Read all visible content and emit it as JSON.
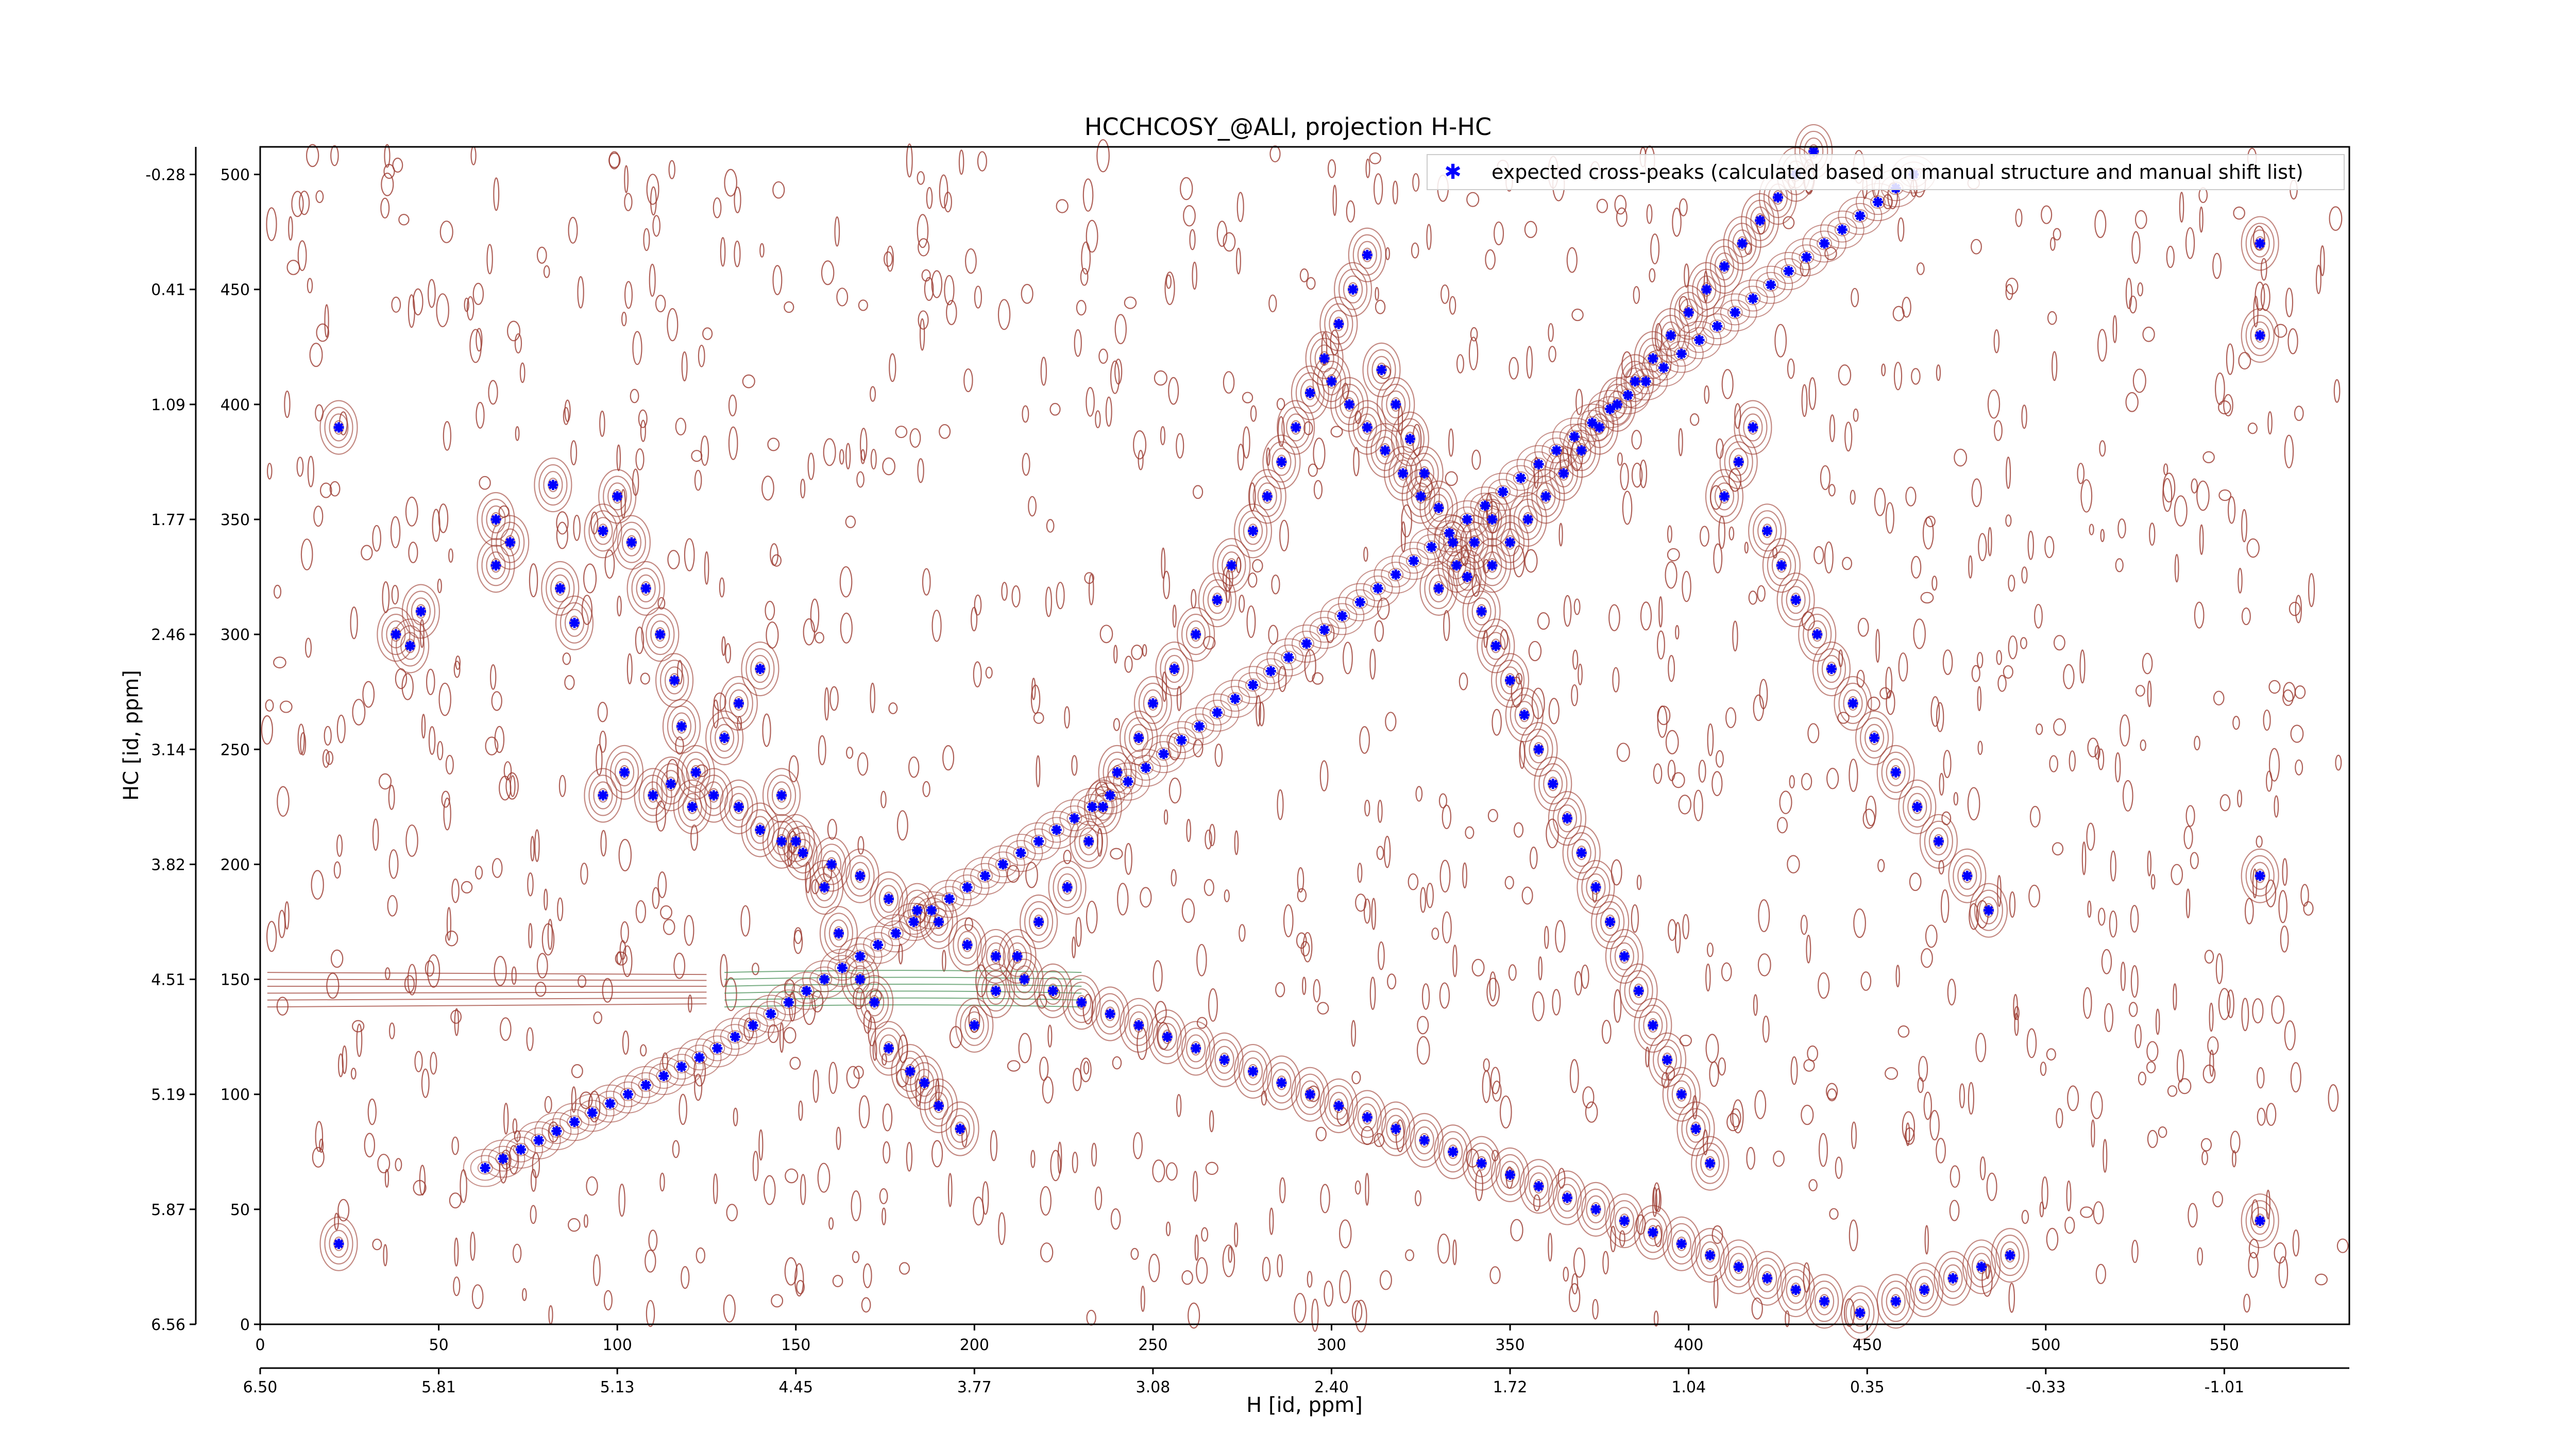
{
  "chart_data": {
    "type": "scatter",
    "title": "HCCHCOSY_@ALI, projection H-HC",
    "xlabel": "H [id, ppm]",
    "ylabel": "HC [id, ppm]",
    "xlim": [
      0,
      585
    ],
    "ylim": [
      0,
      512
    ],
    "x_ticks_points": [
      "0",
      "50",
      "100",
      "150",
      "200",
      "250",
      "300",
      "350",
      "400",
      "450",
      "500",
      "550"
    ],
    "x_ticks_ppm": [
      "6.50",
      "5.81",
      "5.13",
      "4.45",
      "3.77",
      "3.08",
      "2.40",
      "1.72",
      "1.04",
      "0.35",
      "-0.33",
      "-1.01"
    ],
    "y_ticks_points": [
      "0",
      "50",
      "100",
      "150",
      "200",
      "250",
      "300",
      "350",
      "400",
      "450",
      "500"
    ],
    "y_ticks_ppm": [
      "6.56",
      "5.87",
      "5.19",
      "4.51",
      "3.82",
      "3.14",
      "2.46",
      "1.77",
      "1.09",
      "0.41",
      "-0.28"
    ],
    "legend": {
      "label": "expected cross-peaks (calculated based on manual structure and manual shift list)",
      "placement": "top-right"
    },
    "colors": {
      "marker": "#0000ff",
      "contour_positive": "#9b3a2f",
      "contour_negative": "#3e8a4e"
    },
    "series": [
      {
        "name": "expected cross-peaks (calculated based on manual structure and manual shift list)",
        "diagonal_x": [
          63,
          68,
          73,
          78,
          83,
          88,
          93,
          98,
          103,
          108,
          113,
          118,
          123,
          128,
          133,
          138,
          143,
          148,
          153,
          158,
          163,
          168,
          173,
          178,
          183,
          188,
          193,
          198,
          203,
          208,
          213,
          218,
          223,
          228,
          233,
          238,
          243,
          248,
          253,
          258,
          263,
          268,
          273,
          278,
          283,
          288,
          293,
          298,
          303,
          308,
          313,
          318,
          323,
          328,
          333,
          338,
          343,
          348,
          353,
          358,
          363,
          368,
          373,
          378,
          383,
          388,
          393,
          398,
          403,
          408,
          413,
          418,
          423,
          428,
          433,
          438,
          443,
          448,
          453,
          458,
          463
        ],
        "diagonal_y": [
          68,
          72,
          76,
          80,
          84,
          88,
          92,
          96,
          100,
          104,
          108,
          112,
          116,
          120,
          125,
          130,
          135,
          140,
          145,
          150,
          155,
          160,
          165,
          170,
          175,
          180,
          185,
          190,
          195,
          200,
          205,
          210,
          215,
          220,
          225,
          230,
          236,
          242,
          248,
          254,
          260,
          266,
          272,
          278,
          284,
          290,
          296,
          302,
          308,
          314,
          320,
          326,
          332,
          338,
          344,
          350,
          356,
          362,
          368,
          374,
          380,
          386,
          392,
          398,
          404,
          410,
          416,
          422,
          428,
          434,
          440,
          446,
          452,
          458,
          464,
          470,
          476,
          482,
          488,
          494,
          500
        ],
        "offdiag_x": [
          22,
          38,
          42,
          45,
          22,
          66,
          66,
          70,
          82,
          84,
          88,
          96,
          100,
          104,
          108,
          112,
          116,
          118,
          122,
          130,
          134,
          140,
          146,
          150,
          158,
          162,
          168,
          172,
          176,
          182,
          186,
          190,
          196,
          200,
          206,
          212,
          218,
          226,
          232,
          236,
          240,
          246,
          250,
          256,
          262,
          268,
          272,
          278,
          282,
          286,
          290,
          294,
          298,
          302,
          306,
          310,
          314,
          318,
          322,
          326,
          330,
          334,
          338,
          342,
          346,
          350,
          354,
          358,
          362,
          366,
          370,
          374,
          378,
          382,
          386,
          390,
          394,
          398,
          402,
          406,
          410,
          414,
          418,
          422,
          426,
          430,
          436,
          440,
          446,
          452,
          458,
          464,
          470,
          478,
          484,
          560,
          560,
          560,
          560,
          96,
          102,
          110,
          115,
          121,
          127,
          134,
          140,
          146,
          152,
          160,
          168,
          176,
          184,
          190,
          198,
          206,
          214,
          222,
          230,
          238,
          246,
          254,
          262,
          270,
          278,
          286,
          294,
          302,
          310,
          318,
          326,
          334,
          342,
          350,
          358,
          366,
          374,
          382,
          390,
          398,
          406,
          414,
          422,
          430,
          438,
          448,
          458,
          466,
          474,
          482,
          490,
          330,
          335,
          340,
          345,
          325,
          320,
          315,
          310,
          305,
          300,
          345,
          350,
          355,
          360,
          365,
          370,
          375,
          380,
          385,
          390,
          395,
          400,
          405,
          410,
          415,
          420,
          425,
          430,
          435
        ],
        "offdiag_y": [
          390,
          300,
          295,
          310,
          35,
          350,
          330,
          340,
          365,
          320,
          305,
          345,
          360,
          340,
          320,
          300,
          280,
          260,
          240,
          255,
          270,
          285,
          230,
          210,
          190,
          170,
          150,
          140,
          120,
          110,
          105,
          95,
          85,
          130,
          145,
          160,
          175,
          190,
          210,
          225,
          240,
          255,
          270,
          285,
          300,
          315,
          330,
          345,
          360,
          375,
          390,
          405,
          420,
          435,
          450,
          465,
          415,
          400,
          385,
          370,
          355,
          340,
          325,
          310,
          295,
          280,
          265,
          250,
          235,
          220,
          205,
          190,
          175,
          160,
          145,
          130,
          115,
          100,
          85,
          70,
          360,
          375,
          390,
          345,
          330,
          315,
          300,
          285,
          270,
          255,
          240,
          225,
          210,
          195,
          180,
          470,
          430,
          195,
          45,
          230,
          240,
          230,
          235,
          225,
          230,
          225,
          215,
          210,
          205,
          200,
          195,
          185,
          180,
          175,
          165,
          160,
          150,
          145,
          140,
          135,
          130,
          125,
          120,
          115,
          110,
          105,
          100,
          95,
          90,
          85,
          80,
          75,
          70,
          65,
          60,
          55,
          50,
          45,
          40,
          35,
          30,
          25,
          20,
          15,
          10,
          5,
          10,
          15,
          20,
          25,
          30,
          320,
          330,
          340,
          350,
          360,
          370,
          380,
          390,
          400,
          410,
          330,
          340,
          350,
          360,
          370,
          380,
          390,
          400,
          410,
          420,
          430,
          440,
          450,
          460,
          470,
          480,
          490,
          500,
          510
        ]
      }
    ]
  }
}
